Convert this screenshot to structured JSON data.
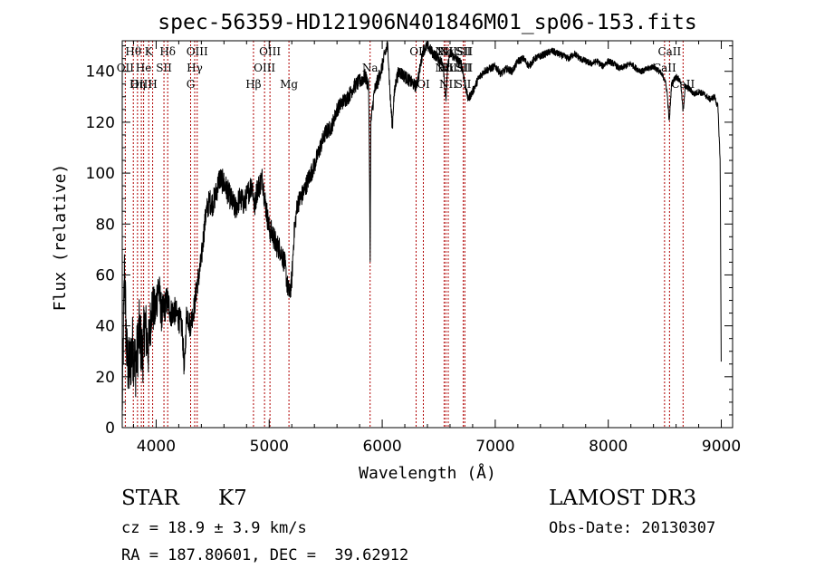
{
  "chart_data": {
    "type": "line",
    "title": "spec-56359-HD121906N401846M01_sp06-153.fits",
    "xlabel": "Wavelength (Å)",
    "ylabel": "Flux (relative)",
    "xlim": [
      3700,
      9100
    ],
    "ylim": [
      0,
      152
    ],
    "xticks": [
      4000,
      5000,
      6000,
      7000,
      8000,
      9000
    ],
    "yticks": [
      0,
      20,
      40,
      60,
      80,
      100,
      120,
      140
    ],
    "tick_labels_x": [
      "4000",
      "5000",
      "6000",
      "7000",
      "8000",
      "9000"
    ],
    "tick_labels_y": [
      "0",
      "20",
      "40",
      "60",
      "80",
      "100",
      "120",
      "140"
    ],
    "line_color": "#000000",
    "marker_color": "#b00000",
    "series": [
      {
        "name": "flux",
        "anchors": [
          [
            3700,
            8
          ],
          [
            3720,
            62
          ],
          [
            3740,
            28
          ],
          [
            3760,
            22
          ],
          [
            3790,
            32
          ],
          [
            3820,
            24
          ],
          [
            3850,
            38
          ],
          [
            3880,
            28
          ],
          [
            3900,
            42
          ],
          [
            3930,
            30
          ],
          [
            3960,
            48
          ],
          [
            3990,
            45
          ],
          [
            4020,
            56
          ],
          [
            4050,
            44
          ],
          [
            4080,
            48
          ],
          [
            4100,
            50
          ],
          [
            4130,
            45
          ],
          [
            4160,
            46
          ],
          [
            4200,
            43
          ],
          [
            4230,
            39
          ],
          [
            4250,
            22
          ],
          [
            4270,
            46
          ],
          [
            4300,
            40
          ],
          [
            4320,
            44
          ],
          [
            4340,
            48
          ],
          [
            4360,
            56
          ],
          [
            4380,
            60
          ],
          [
            4400,
            66
          ],
          [
            4420,
            76
          ],
          [
            4440,
            84
          ],
          [
            4470,
            89
          ],
          [
            4500,
            88
          ],
          [
            4530,
            92
          ],
          [
            4560,
            98
          ],
          [
            4600,
            96
          ],
          [
            4630,
            93
          ],
          [
            4660,
            90
          ],
          [
            4700,
            86
          ],
          [
            4740,
            90
          ],
          [
            4780,
            88
          ],
          [
            4820,
            93
          ],
          [
            4850,
            96
          ],
          [
            4870,
            86
          ],
          [
            4890,
            93
          ],
          [
            4920,
            96
          ],
          [
            4940,
            98
          ],
          [
            4960,
            90
          ],
          [
            4980,
            84
          ],
          [
            5000,
            78
          ],
          [
            5030,
            76
          ],
          [
            5060,
            72
          ],
          [
            5100,
            70
          ],
          [
            5140,
            64
          ],
          [
            5160,
            56
          ],
          [
            5180,
            52
          ],
          [
            5200,
            58
          ],
          [
            5220,
            76
          ],
          [
            5250,
            88
          ],
          [
            5300,
            92
          ],
          [
            5350,
            98
          ],
          [
            5400,
            103
          ],
          [
            5450,
            110
          ],
          [
            5500,
            116
          ],
          [
            5550,
            118
          ],
          [
            5600,
            125
          ],
          [
            5650,
            128
          ],
          [
            5700,
            130
          ],
          [
            5750,
            134
          ],
          [
            5800,
            136
          ],
          [
            5850,
            138
          ],
          [
            5880,
            134
          ],
          [
            5890,
            90
          ],
          [
            5893,
            60
          ],
          [
            5896,
            94
          ],
          [
            5900,
            120
          ],
          [
            5930,
            132
          ],
          [
            5960,
            136
          ],
          [
            6000,
            142
          ],
          [
            6030,
            148
          ],
          [
            6050,
            150
          ],
          [
            6070,
            130
          ],
          [
            6090,
            118
          ],
          [
            6100,
            128
          ],
          [
            6120,
            136
          ],
          [
            6150,
            140
          ],
          [
            6200,
            138
          ],
          [
            6250,
            136
          ],
          [
            6300,
            134
          ],
          [
            6330,
            140
          ],
          [
            6360,
            148
          ],
          [
            6400,
            150
          ],
          [
            6450,
            147
          ],
          [
            6500,
            145
          ],
          [
            6540,
            143
          ],
          [
            6562,
            128
          ],
          [
            6580,
            142
          ],
          [
            6600,
            147
          ],
          [
            6650,
            145
          ],
          [
            6700,
            143
          ],
          [
            6730,
            136
          ],
          [
            6760,
            129
          ],
          [
            6800,
            132
          ],
          [
            6850,
            137
          ],
          [
            6900,
            140
          ],
          [
            6950,
            141
          ],
          [
            7000,
            142
          ],
          [
            7050,
            139
          ],
          [
            7100,
            141
          ],
          [
            7150,
            140
          ],
          [
            7200,
            144
          ],
          [
            7250,
            145
          ],
          [
            7300,
            142
          ],
          [
            7350,
            145
          ],
          [
            7400,
            146
          ],
          [
            7450,
            147
          ],
          [
            7500,
            148
          ],
          [
            7550,
            147
          ],
          [
            7600,
            146
          ],
          [
            7650,
            145
          ],
          [
            7700,
            147
          ],
          [
            7750,
            145
          ],
          [
            7800,
            144
          ],
          [
            7850,
            143
          ],
          [
            7900,
            144
          ],
          [
            7950,
            142
          ],
          [
            8000,
            144
          ],
          [
            8050,
            143
          ],
          [
            8100,
            141
          ],
          [
            8150,
            142
          ],
          [
            8200,
            143
          ],
          [
            8250,
            141
          ],
          [
            8300,
            140
          ],
          [
            8350,
            141
          ],
          [
            8400,
            142
          ],
          [
            8450,
            140
          ],
          [
            8500,
            137
          ],
          [
            8520,
            132
          ],
          [
            8540,
            120
          ],
          [
            8560,
            135
          ],
          [
            8600,
            138
          ],
          [
            8640,
            136
          ],
          [
            8662,
            124
          ],
          [
            8680,
            134
          ],
          [
            8720,
            133
          ],
          [
            8760,
            131
          ],
          [
            8800,
            132
          ],
          [
            8850,
            131
          ],
          [
            8900,
            129
          ],
          [
            8940,
            130
          ],
          [
            8970,
            126
          ],
          [
            8990,
            105
          ],
          [
            9000,
            20
          ]
        ],
        "noise": [
          [
            3700,
            14
          ],
          [
            3900,
            12
          ],
          [
            4100,
            6
          ],
          [
            4300,
            5
          ],
          [
            4600,
            5
          ],
          [
            5000,
            5
          ],
          [
            5300,
            4
          ],
          [
            5600,
            3
          ],
          [
            6000,
            3
          ],
          [
            6500,
            2
          ],
          [
            7000,
            1.5
          ],
          [
            8000,
            1.2
          ],
          [
            9000,
            1.2
          ]
        ]
      }
    ],
    "lines": [
      {
        "label": "Hθ",
        "wl": 3798,
        "row": 1
      },
      {
        "label": "OII",
        "wl": 3727,
        "row": 2
      },
      {
        "label": "OIII",
        "wl": 3869,
        "row": 3
      },
      {
        "label": "K",
        "wl": 3934,
        "row": 1
      },
      {
        "label": "He",
        "wl": 3889,
        "row": 2
      },
      {
        "label": "Hη",
        "wl": 3835,
        "row": 3
      },
      {
        "label": "SII",
        "wl": 4069,
        "row": 2
      },
      {
        "label": "H",
        "wl": 3969,
        "row": 3
      },
      {
        "label": "Hδ",
        "wl": 4102,
        "row": 1
      },
      {
        "label": "OIII",
        "wl": 4363,
        "row": 1
      },
      {
        "label": "Hγ",
        "wl": 4341,
        "row": 2
      },
      {
        "label": "G",
        "wl": 4305,
        "row": 3
      },
      {
        "label": "OIII",
        "wl": 5007,
        "row": 1
      },
      {
        "label": "OIII",
        "wl": 4959,
        "row": 2
      },
      {
        "label": "Hβ",
        "wl": 4861,
        "row": 3
      },
      {
        "label": "Mg",
        "wl": 5175,
        "row": 3
      },
      {
        "label": "Na",
        "wl": 5893,
        "row": 2
      },
      {
        "label": "OI",
        "wl": 6300,
        "row": 1
      },
      {
        "label": "OI",
        "wl": 6364,
        "row": 3
      },
      {
        "label": "NII",
        "wl": 6548,
        "row": 1
      },
      {
        "label": "Hα",
        "wl": 6563,
        "row": 1
      },
      {
        "label": "NII",
        "wl": 6584,
        "row": 1
      },
      {
        "label": "SII",
        "wl": 6717,
        "row": 1
      },
      {
        "label": "SII",
        "wl": 6731,
        "row": 1
      },
      {
        "label": "NII",
        "wl": 6548,
        "row": 2
      },
      {
        "label": "Hα",
        "wl": 6563,
        "row": 2
      },
      {
        "label": "NII",
        "wl": 6584,
        "row": 2
      },
      {
        "label": "SII",
        "wl": 6717,
        "row": 2
      },
      {
        "label": "SII",
        "wl": 6731,
        "row": 2
      },
      {
        "label": "NII",
        "wl": 6584,
        "row": 3
      },
      {
        "label": "SII",
        "wl": 6717,
        "row": 3
      },
      {
        "label": "CaII",
        "wl": 8542,
        "row": 1
      },
      {
        "label": "CaII",
        "wl": 8498,
        "row": 2
      },
      {
        "label": "CaII",
        "wl": 8662,
        "row": 3
      }
    ]
  },
  "info": {
    "object_class": "STAR",
    "subclass": "K7",
    "cz": "cz = 18.9 ± 3.9 km/s",
    "radec": "RA = 187.80601, DEC =  39.62912",
    "survey": "LAMOST DR3",
    "obs_date": "Obs-Date: 20130307"
  }
}
